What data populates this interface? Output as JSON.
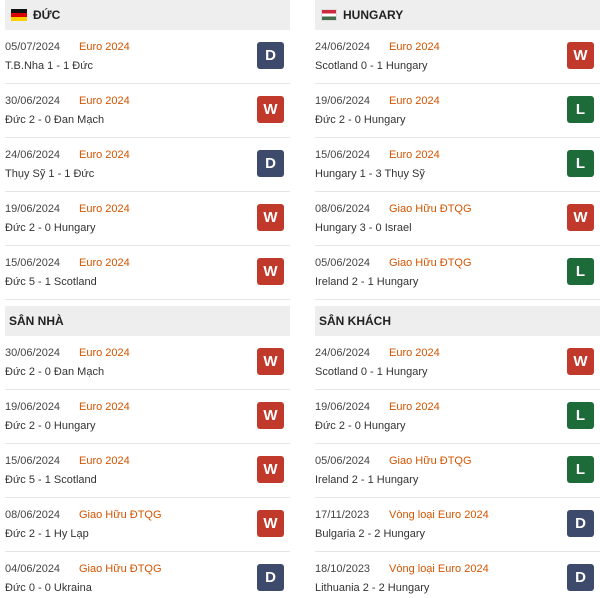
{
  "left": {
    "top_section": {
      "title": "ĐỨC",
      "rows": [
        {
          "date": "05/07/2024",
          "competition": "Euro 2024",
          "match": "T.B.Nha 1 - 1 Đức",
          "result": "D"
        },
        {
          "date": "30/06/2024",
          "competition": "Euro 2024",
          "match": "Đức 2 - 0 Đan Mạch",
          "result": "W"
        },
        {
          "date": "24/06/2024",
          "competition": "Euro 2024",
          "match": "Thụy Sỹ 1 - 1 Đức",
          "result": "D"
        },
        {
          "date": "19/06/2024",
          "competition": "Euro 2024",
          "match": "Đức 2 - 0 Hungary",
          "result": "W"
        },
        {
          "date": "15/06/2024",
          "competition": "Euro 2024",
          "match": "Đức 5 - 1 Scotland",
          "result": "W"
        }
      ]
    },
    "bottom_section": {
      "title": "SÂN NHÀ",
      "rows": [
        {
          "date": "30/06/2024",
          "competition": "Euro 2024",
          "match": "Đức 2 - 0 Đan Mạch",
          "result": "W"
        },
        {
          "date": "19/06/2024",
          "competition": "Euro 2024",
          "match": "Đức 2 - 0 Hungary",
          "result": "W"
        },
        {
          "date": "15/06/2024",
          "competition": "Euro 2024",
          "match": "Đức 5 - 1 Scotland",
          "result": "W"
        },
        {
          "date": "08/06/2024",
          "competition": "Giao Hữu ĐTQG",
          "match": "Đức 2 - 1 Hy Lạp",
          "result": "W"
        },
        {
          "date": "04/06/2024",
          "competition": "Giao Hữu ĐTQG",
          "match": "Đức 0 - 0 Ukraina",
          "result": "D"
        }
      ]
    }
  },
  "right": {
    "top_section": {
      "title": "HUNGARY",
      "rows": [
        {
          "date": "24/06/2024",
          "competition": "Euro 2024",
          "match": "Scotland 0 - 1 Hungary",
          "result": "W"
        },
        {
          "date": "19/06/2024",
          "competition": "Euro 2024",
          "match": "Đức 2 - 0 Hungary",
          "result": "L"
        },
        {
          "date": "15/06/2024",
          "competition": "Euro 2024",
          "match": "Hungary 1 - 3 Thụy Sỹ",
          "result": "L"
        },
        {
          "date": "08/06/2024",
          "competition": "Giao Hữu ĐTQG",
          "match": "Hungary 3 - 0 Israel",
          "result": "W"
        },
        {
          "date": "05/06/2024",
          "competition": "Giao Hữu ĐTQG",
          "match": "Ireland 2 - 1 Hungary",
          "result": "L"
        }
      ]
    },
    "bottom_section": {
      "title": "SÂN KHÁCH",
      "rows": [
        {
          "date": "24/06/2024",
          "competition": "Euro 2024",
          "match": "Scotland 0 - 1 Hungary",
          "result": "W"
        },
        {
          "date": "19/06/2024",
          "competition": "Euro 2024",
          "match": "Đức 2 - 0 Hungary",
          "result": "L"
        },
        {
          "date": "05/06/2024",
          "competition": "Giao Hữu ĐTQG",
          "match": "Ireland 2 - 1 Hungary",
          "result": "L"
        },
        {
          "date": "17/11/2023",
          "competition": "Vòng loại Euro 2024",
          "match": "Bulgaria 2 - 2 Hungary",
          "result": "D"
        },
        {
          "date": "18/10/2023",
          "competition": "Vòng loại Euro 2024",
          "match": "Lithuania 2 - 2 Hungary",
          "result": "D"
        }
      ]
    }
  },
  "colors": {
    "win": "#c0392b",
    "draw": "#3d4a6b",
    "loss": "#1e6b3a",
    "competition_text": "#d35400"
  }
}
